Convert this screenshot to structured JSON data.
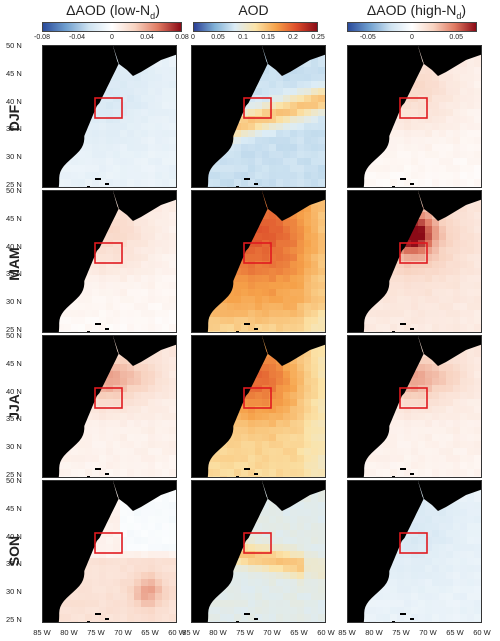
{
  "columns": [
    {
      "title_main": "ΔAOD (low-N",
      "title_sub": "d",
      "title_end": ")",
      "ticks": [
        "-0.08",
        "-0.04",
        "0",
        "0.04",
        "0.08"
      ]
    },
    {
      "title_main": "AOD",
      "title_sub": "",
      "title_end": "",
      "ticks": [
        "0",
        "0.05",
        "0.1",
        "0.15",
        "0.2",
        "0.25"
      ]
    },
    {
      "title_main": "ΔAOD (high-N",
      "title_sub": "d",
      "title_end": ")",
      "ticks": [
        "-0.05",
        "0",
        "0.05"
      ]
    }
  ],
  "rows": [
    "DJF",
    "MAM",
    "JJA",
    "SON"
  ],
  "lat_labels": [
    "50 N",
    "45 N",
    "40 N",
    "35 N",
    "30 N",
    "25 N"
  ],
  "lon_labels": [
    "85 W",
    "80 W",
    "75 W",
    "70 W",
    "65 W",
    "60 W"
  ],
  "colors": {
    "land": "#000000",
    "box": "#e0191f",
    "diverging": [
      "#2b4b9b",
      "#6f9fcf",
      "#cfe3f1",
      "#ffffff",
      "#f8d3c1",
      "#e07a62",
      "#8b0a16"
    ],
    "sequential": [
      "#2b3f95",
      "#7fb0d6",
      "#dcecf6",
      "#fbe3a8",
      "#f6a24a",
      "#dd4c2a",
      "#8a0c18"
    ]
  },
  "panel_fields": {
    "DJF": {
      "low": "lb",
      "aod": "djf_aod",
      "high": "lr"
    },
    "MAM": {
      "low": "lr",
      "aod": "mam_aod",
      "high": "hotspot"
    },
    "JJA": {
      "low": "mr",
      "aod": "jja_aod",
      "high": "mr"
    },
    "SON": {
      "low": "mixed",
      "aod": "son_aod",
      "high": "lb"
    }
  }
}
